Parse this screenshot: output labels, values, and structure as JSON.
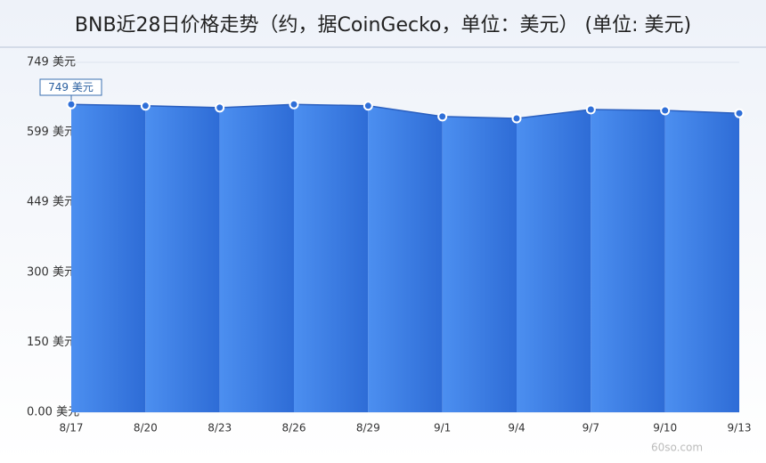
{
  "chart_data": {
    "type": "area",
    "title": "BNB近28日价格走势（约，据CoinGecko，单位：美元） (单位: 美元)",
    "categories": [
      "8/17",
      "8/20",
      "8/23",
      "8/26",
      "8/29",
      "9/1",
      "9/4",
      "9/7",
      "9/10",
      "9/13"
    ],
    "series": [
      {
        "name": "BNB",
        "color": "#3a7ee6",
        "values": [
          659,
          656,
          652,
          659,
          656,
          633,
          629,
          648,
          646,
          640
        ]
      }
    ],
    "ylim": [
      0,
      749
    ],
    "yticks": [
      {
        "value": 0,
        "label": "0.00 美元"
      },
      {
        "value": 149.8,
        "label": "150 美元"
      },
      {
        "value": 299.6,
        "label": "300 美元"
      },
      {
        "value": 449.4,
        "label": "449 美元"
      },
      {
        "value": 599.2,
        "label": "599 美元"
      },
      {
        "value": 749,
        "label": "749 美元"
      }
    ],
    "grid": true,
    "annotation": "749 美元",
    "watermark": "60so.com"
  }
}
